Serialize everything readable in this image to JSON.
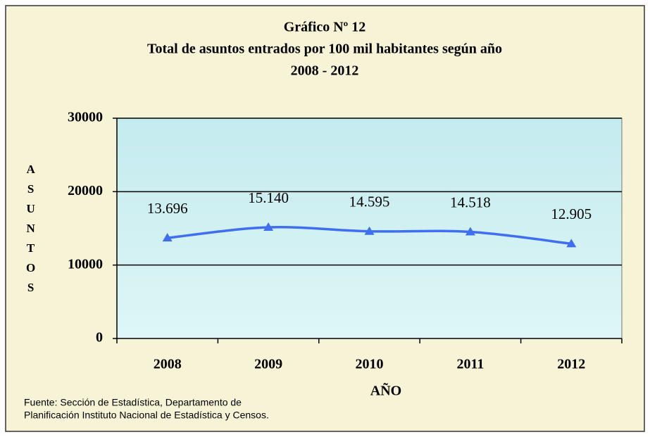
{
  "chart_data": {
    "type": "line",
    "title": [
      "Gráfico Nº 12",
      "Total de asuntos entrados por 100 mil habitantes según año",
      "2008 - 2012"
    ],
    "y_label": "ASUNTOS",
    "x_label": "AÑO",
    "source": [
      "Fuente: Sección de Estadística, Departamento de",
      "Planificación  Instituto Nacional de Estadística y Censos."
    ],
    "categories": [
      "2008",
      "2009",
      "2010",
      "2011",
      "2012"
    ],
    "series": [
      {
        "name": "Asuntos",
        "color": "#3f6ff0",
        "values": [
          13696,
          15140,
          14595,
          14518,
          12905
        ],
        "value_labels": [
          "13.696",
          "15.140",
          "14.595",
          "14.518",
          "12.905"
        ]
      }
    ],
    "ylim": [
      0,
      30000
    ],
    "yticks": [
      0,
      10000,
      20000,
      30000
    ],
    "grid": true,
    "smooth": true
  }
}
